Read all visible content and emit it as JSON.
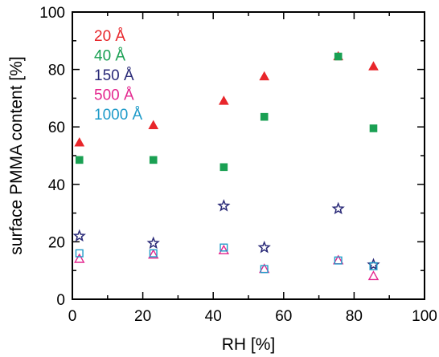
{
  "chart_data": {
    "type": "scatter",
    "xlabel": "RH [%]",
    "ylabel": "surface PMMA content [%]",
    "xlim": [
      0,
      100
    ],
    "ylim": [
      0,
      100
    ],
    "x_ticks": [
      0,
      20,
      40,
      60,
      80,
      100
    ],
    "y_ticks": [
      0,
      20,
      40,
      60,
      80,
      100
    ],
    "grid": false,
    "legend_position": "top-left",
    "series": [
      {
        "name": "20 Å",
        "marker": "filled-triangle",
        "color": "#e8262b",
        "x": [
          2,
          23,
          43,
          54.5,
          75.5,
          85.5
        ],
        "y": [
          54.5,
          60.5,
          69,
          77.5,
          84.5,
          81
        ]
      },
      {
        "name": "40 Å",
        "marker": "filled-square",
        "color": "#1aa053",
        "x": [
          2,
          23,
          43,
          54.5,
          75.5,
          85.5
        ],
        "y": [
          48.5,
          48.5,
          46,
          63.5,
          84.5,
          59.5
        ]
      },
      {
        "name": "150 Å",
        "marker": "open-star",
        "color": "#2a2a78",
        "x": [
          2,
          23,
          43,
          54.5,
          75.5,
          85.5
        ],
        "y": [
          22,
          19.5,
          32.5,
          18,
          31.5,
          12
        ]
      },
      {
        "name": "500 Å",
        "marker": "open-triangle",
        "color": "#e4288f",
        "x": [
          2,
          23,
          43,
          54.5,
          75.5,
          85.5
        ],
        "y": [
          14,
          15.5,
          17,
          10.5,
          13.5,
          8
        ]
      },
      {
        "name": "1000 Å",
        "marker": "open-square",
        "color": "#1f9bc9",
        "x": [
          2,
          23,
          43,
          54.5,
          75.5,
          85.5
        ],
        "y": [
          16,
          16,
          18,
          10.5,
          13.5,
          11.5
        ]
      }
    ]
  }
}
